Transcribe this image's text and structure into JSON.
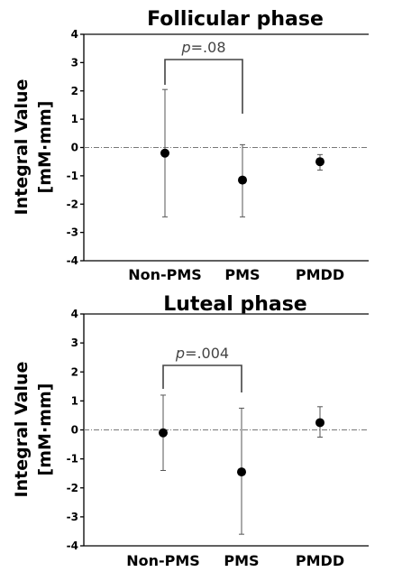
{
  "chart_data": [
    {
      "type": "scatter",
      "title": "Follicular phase",
      "ylabel_line1": "Integral Value",
      "ylabel_line2": "[mM·mm]",
      "ylim": [
        -4,
        4
      ],
      "yticks": [
        "4",
        "3",
        "2",
        "1",
        "0",
        "-1",
        "-2",
        "-3",
        "-4"
      ],
      "categories": [
        "Non-PMS",
        "PMS",
        "PMDD"
      ],
      "series": [
        {
          "values": [
            -0.2,
            -1.15,
            -0.5
          ],
          "error_low": [
            -2.45,
            -2.45,
            -0.8
          ],
          "error_high": [
            2.05,
            0.1,
            -0.25
          ]
        }
      ],
      "reference_line": 0,
      "annotation": {
        "prefix": "p",
        "text": "=.08",
        "between": [
          "Non-PMS",
          "PMS"
        ]
      }
    },
    {
      "type": "scatter",
      "title": "Luteal phase",
      "ylabel_line1": "Integral Value",
      "ylabel_line2": "[mM·mm]",
      "ylim": [
        -4,
        4
      ],
      "yticks": [
        "4",
        "3",
        "2",
        "1",
        "0",
        "-1",
        "-2",
        "-3",
        "-4"
      ],
      "categories": [
        "Non-PMS",
        "PMS",
        "PMDD"
      ],
      "series": [
        {
          "values": [
            -0.1,
            -1.45,
            0.25
          ],
          "error_low": [
            -1.4,
            -3.6,
            -0.25
          ],
          "error_high": [
            1.2,
            0.75,
            0.8
          ]
        }
      ],
      "reference_line": 0,
      "annotation": {
        "prefix": "p",
        "text": "=.004",
        "between": [
          "Non-PMS",
          "PMS"
        ]
      }
    }
  ]
}
